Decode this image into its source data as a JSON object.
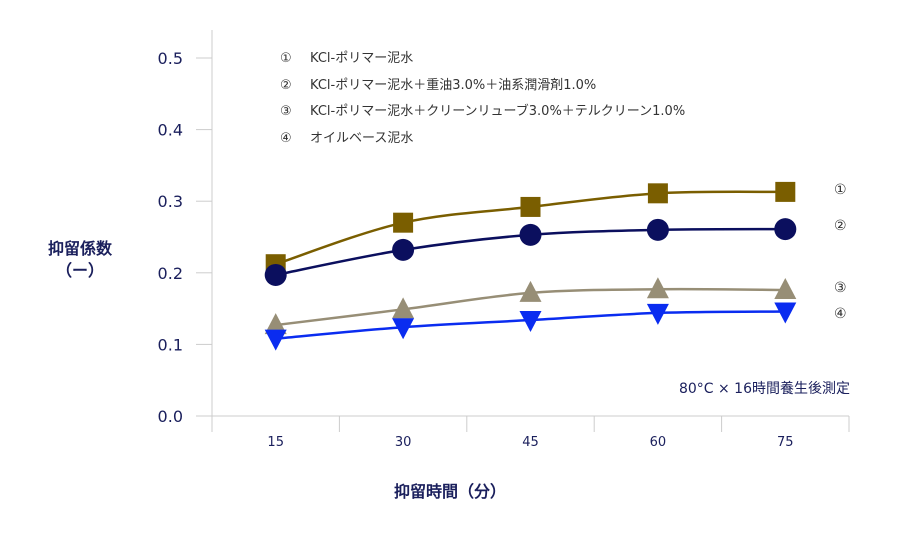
{
  "chart_data": {
    "type": "line",
    "ylabel_line1": "抑留係数",
    "ylabel_line2": "（ー）",
    "xlabel": "抑留時間（分）",
    "categories": [
      "15",
      "30",
      "45",
      "60",
      "75"
    ],
    "ylim": [
      0.0,
      0.5
    ],
    "yticks": [
      "0.0",
      "0.1",
      "0.2",
      "0.3",
      "0.4",
      "0.5"
    ],
    "grid": false,
    "legend_position": "top",
    "annotation": "80°C × 16時間養生後測定",
    "series": [
      {
        "marker_label": "①",
        "name": "KCl-ポリマー泥水",
        "marker": "square",
        "color": "#7a5e00",
        "values": [
          0.212,
          0.27,
          0.292,
          0.311,
          0.313
        ]
      },
      {
        "marker_label": "②",
        "name": "KCl-ポリマー泥水＋重油3.0%＋油系潤滑剤1.0%",
        "marker": "circle",
        "color": "#0b0f5e",
        "values": [
          0.197,
          0.232,
          0.253,
          0.26,
          0.261
        ]
      },
      {
        "marker_label": "③",
        "name": "KCl-ポリマー泥水＋クリーンリューブ3.0%＋テルクリーン1.0%",
        "marker": "triangle-up",
        "color": "#978e76",
        "values": [
          0.127,
          0.149,
          0.172,
          0.177,
          0.176
        ]
      },
      {
        "marker_label": "④",
        "name": "オイルベース泥水",
        "marker": "triangle-down",
        "color": "#0a2cf0",
        "values": [
          0.108,
          0.124,
          0.134,
          0.144,
          0.146
        ]
      }
    ]
  }
}
